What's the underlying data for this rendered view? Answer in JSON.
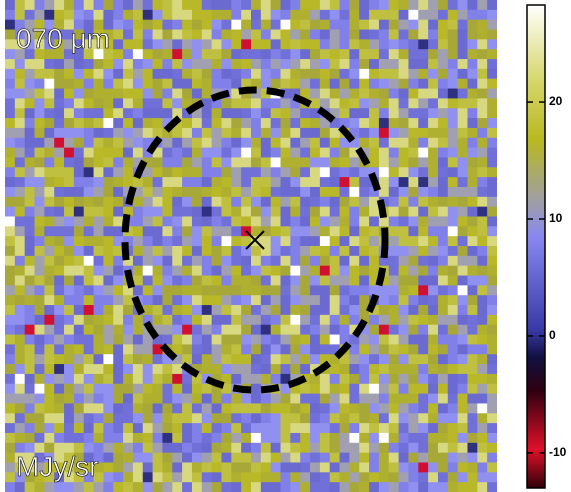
{
  "panel_label": "070 μm",
  "unit_label": "MJy/sr",
  "colorbar": {
    "lim": [
      -13,
      28.3
    ],
    "ticks": [
      -10,
      0,
      10,
      20
    ]
  }
}
